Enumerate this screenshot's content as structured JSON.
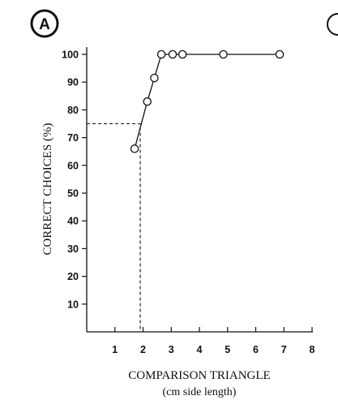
{
  "panel_label": "A",
  "chart_data": {
    "type": "line",
    "xlabel": "COMPARISON TRIANGLE",
    "xlabel_sub": "(cm side length)",
    "ylabel": "CORRECT CHOICES (%)",
    "xlim": [
      0,
      8
    ],
    "ylim": [
      0,
      100
    ],
    "x_ticks": [
      1,
      2,
      3,
      4,
      5,
      6,
      7,
      8
    ],
    "y_ticks": [
      10,
      20,
      30,
      40,
      50,
      60,
      70,
      80,
      90,
      100
    ],
    "grid": false,
    "series": [
      {
        "x": [
          1.7,
          2.15,
          2.4,
          2.65,
          3.05,
          3.4,
          4.85,
          6.85
        ],
        "values": [
          66,
          83,
          91.5,
          100,
          100,
          100,
          100,
          100
        ]
      }
    ],
    "threshold": {
      "y": 75,
      "x": 1.9
    }
  }
}
